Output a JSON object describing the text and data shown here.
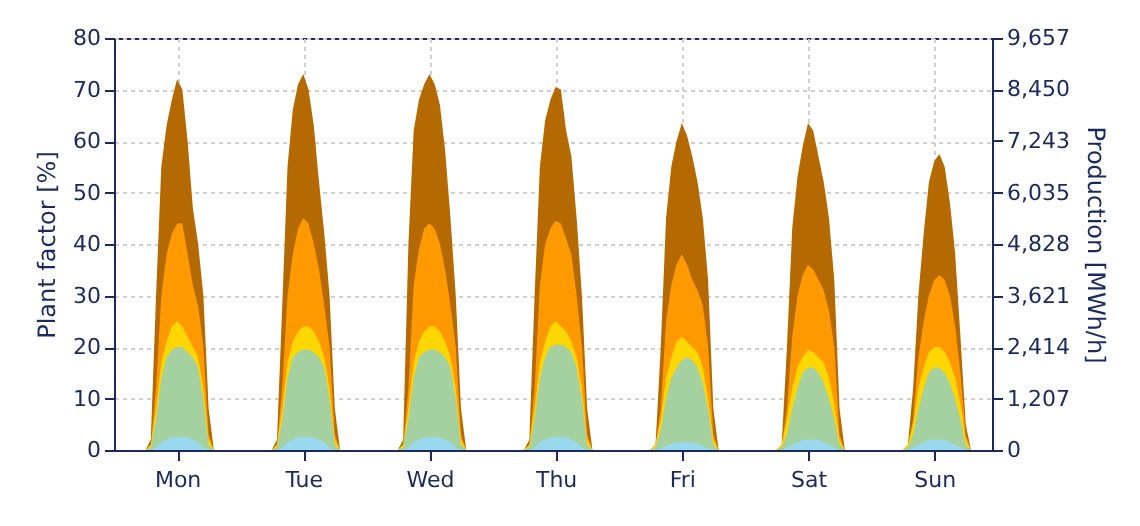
{
  "chart_data": {
    "type": "area",
    "ylabel": "Plant factor [%]",
    "y2label": "Production [MWh/h]",
    "grid": true,
    "categories": [
      null,
      null,
      null,
      null,
      null,
      null,
      null,
      null,
      null,
      null,
      null,
      null,
      "Mon",
      null,
      null,
      null,
      null,
      null,
      null,
      null,
      null,
      null,
      null,
      null,
      null,
      null,
      null,
      null,
      null,
      null,
      null,
      null,
      null,
      null,
      null,
      null,
      "Tue",
      null,
      null,
      null,
      null,
      null,
      null,
      null,
      null,
      null,
      null,
      null,
      null,
      null,
      null,
      null,
      null,
      null,
      null,
      null,
      null,
      null,
      null,
      null,
      "Wed",
      null,
      null,
      null,
      null,
      null,
      null,
      null,
      null,
      null,
      null,
      null,
      null,
      null,
      null,
      null,
      null,
      null,
      null,
      null,
      null,
      null,
      null,
      null,
      "Thu",
      null,
      null,
      null,
      null,
      null,
      null,
      null,
      null,
      null,
      null,
      null,
      null,
      null,
      null,
      null,
      null,
      null,
      null,
      null,
      null,
      null,
      null,
      null,
      "Fri",
      null,
      null,
      null,
      null,
      null,
      null,
      null,
      null,
      null,
      null,
      null,
      null,
      null,
      null,
      null,
      null,
      null,
      null,
      null,
      null,
      null,
      null,
      null,
      "Sat",
      null,
      null,
      null,
      null,
      null,
      null,
      null,
      null,
      null,
      null,
      null,
      null,
      null,
      null,
      null,
      null,
      null,
      null,
      null,
      null,
      null,
      null,
      null,
      "Sun",
      null,
      null,
      null,
      null,
      null,
      null,
      null,
      null,
      null,
      null,
      null
    ],
    "ylim": [
      0,
      80
    ],
    "yticks": [
      0,
      10,
      20,
      30,
      40,
      50,
      60,
      70,
      80
    ],
    "y2lim": [
      0,
      9657
    ],
    "y2ticks": [
      0,
      {
        "value": 1207,
        "label": "1,207"
      },
      {
        "value": 2414,
        "label": "2,414"
      },
      {
        "value": 3621,
        "label": "3,621"
      },
      {
        "value": 4828,
        "label": "4,828"
      },
      {
        "value": 6035,
        "label": "6,035"
      },
      {
        "value": 7243,
        "label": "7,243"
      },
      {
        "value": 8450,
        "label": "8,450"
      },
      {
        "value": 9657,
        "label": "9,657"
      }
    ],
    "series": [
      {
        "color": "#b46a00",
        "values": [
          0,
          0,
          0,
          0,
          0,
          0,
          0,
          2,
          30,
          55,
          63,
          68,
          72,
          70,
          60,
          47,
          40,
          30,
          8,
          0,
          0,
          0,
          0,
          0,
          0,
          0,
          0,
          0,
          0,
          0,
          0,
          2,
          28,
          55,
          66,
          71,
          73,
          70,
          63,
          52,
          42,
          30,
          8,
          0,
          0,
          0,
          0,
          0,
          0,
          0,
          0,
          0,
          0,
          0,
          0,
          2,
          40,
          62,
          68,
          71,
          73,
          71,
          67,
          58,
          45,
          30,
          8,
          0,
          0,
          0,
          0,
          0,
          0,
          0,
          0,
          0,
          0,
          0,
          0,
          2,
          30,
          55,
          64,
          68,
          70.5,
          70,
          62,
          57,
          45,
          30,
          8,
          0,
          0,
          0,
          0,
          0,
          0,
          0,
          0,
          0,
          0,
          0,
          0,
          1,
          20,
          45,
          55,
          60,
          63.5,
          61,
          57,
          52,
          45,
          33,
          8,
          0,
          0,
          0,
          0,
          0,
          0,
          0,
          0,
          0,
          0,
          0,
          0,
          1,
          20,
          43,
          53,
          59,
          63.5,
          62,
          57,
          52,
          45,
          33,
          8,
          0,
          0,
          0,
          0,
          0,
          0,
          0,
          0,
          0,
          0,
          0,
          0,
          1,
          12,
          30,
          42,
          52,
          56,
          57.5,
          55,
          48,
          38,
          22,
          5,
          0,
          0,
          0,
          0,
          0
        ]
      },
      {
        "color": "#ff9900",
        "values": [
          0,
          0,
          0,
          0,
          0,
          0,
          0,
          1,
          12,
          30,
          38,
          42,
          44,
          44,
          38,
          32,
          28,
          20,
          3,
          0,
          0,
          0,
          0,
          0,
          0,
          0,
          0,
          0,
          0,
          0,
          0,
          1,
          12,
          30,
          38,
          43,
          45,
          44,
          40,
          35,
          28,
          20,
          3,
          0,
          0,
          0,
          0,
          0,
          0,
          0,
          0,
          0,
          0,
          0,
          0,
          1,
          12,
          32,
          39,
          43,
          44,
          43,
          40,
          35,
          28,
          20,
          3,
          0,
          0,
          0,
          0,
          0,
          0,
          0,
          0,
          0,
          0,
          0,
          0,
          1,
          12,
          32,
          40,
          43,
          44.5,
          44,
          41,
          38,
          30,
          20,
          3,
          0,
          0,
          0,
          0,
          0,
          0,
          0,
          0,
          0,
          0,
          0,
          0,
          1,
          8,
          25,
          32,
          36,
          38,
          36,
          33,
          31,
          28,
          20,
          3,
          0,
          0,
          0,
          0,
          0,
          0,
          0,
          0,
          0,
          0,
          0,
          0,
          1,
          8,
          22,
          30,
          34,
          36,
          35,
          33,
          31,
          27,
          20,
          3,
          0,
          0,
          0,
          0,
          0,
          0,
          0,
          0,
          0,
          0,
          0,
          0,
          1,
          6,
          18,
          25,
          30,
          33,
          34,
          33,
          30,
          24,
          15,
          3,
          0,
          0,
          0,
          0,
          0
        ]
      },
      {
        "color": "#ffd700",
        "values": [
          0,
          0,
          0,
          0,
          0,
          0,
          0,
          1,
          8,
          17,
          21,
          24,
          25,
          24,
          22,
          20,
          18,
          12,
          2,
          0,
          0,
          0,
          0,
          0,
          0,
          0,
          0,
          0,
          0,
          0,
          0,
          1,
          8,
          17,
          21,
          23,
          24,
          24,
          23,
          21,
          18,
          12,
          2,
          0,
          0,
          0,
          0,
          0,
          0,
          0,
          0,
          0,
          0,
          0,
          0,
          1,
          8,
          17,
          21,
          23,
          24,
          24,
          23,
          21,
          18,
          12,
          2,
          0,
          0,
          0,
          0,
          0,
          0,
          0,
          0,
          0,
          0,
          0,
          0,
          1,
          8,
          17,
          21,
          24,
          25,
          24,
          23,
          21,
          18,
          12,
          2,
          0,
          0,
          0,
          0,
          0,
          0,
          0,
          0,
          0,
          0,
          0,
          0,
          1,
          6,
          14,
          18,
          21,
          22,
          21,
          20,
          19,
          16,
          10,
          2,
          0,
          0,
          0,
          0,
          0,
          0,
          0,
          0,
          0,
          0,
          0,
          0,
          1,
          6,
          12,
          16,
          18,
          19.5,
          19,
          18,
          17,
          14,
          9,
          2,
          0,
          0,
          0,
          0,
          0,
          0,
          0,
          0,
          0,
          0,
          0,
          0,
          1,
          5,
          12,
          16,
          19,
          20,
          20,
          19,
          17,
          14,
          9,
          2,
          0,
          0,
          0,
          0,
          0
        ]
      },
      {
        "color": "#a5d1a1",
        "values": [
          0,
          0,
          0,
          0,
          0,
          0,
          0,
          0.5,
          6,
          14,
          18,
          19.5,
          20,
          20,
          19,
          18,
          16,
          10,
          1,
          0,
          0,
          0,
          0,
          0,
          0,
          0,
          0,
          0,
          0,
          0,
          0,
          0.5,
          6,
          14,
          18,
          19,
          19.5,
          19.5,
          19,
          18,
          16,
          10,
          1,
          0,
          0,
          0,
          0,
          0,
          0,
          0,
          0,
          0,
          0,
          0,
          0,
          0.5,
          6,
          14,
          18,
          19,
          19.5,
          19.5,
          19,
          18,
          16,
          10,
          1,
          0,
          0,
          0,
          0,
          0,
          0,
          0,
          0,
          0,
          0,
          0,
          0,
          0.5,
          6,
          14,
          18,
          20,
          20.5,
          20.5,
          20,
          19,
          16,
          10,
          1,
          0,
          0,
          0,
          0,
          0,
          0,
          0,
          0,
          0,
          0,
          0,
          0,
          0.5,
          4,
          10,
          14,
          16,
          17.5,
          18,
          17.5,
          16,
          13,
          8,
          1,
          0,
          0,
          0,
          0,
          0,
          0,
          0,
          0,
          0,
          0,
          0,
          0,
          0.5,
          3,
          8,
          12,
          15,
          16,
          16,
          15,
          13,
          10,
          6,
          1,
          0,
          0,
          0,
          0,
          0,
          0,
          0,
          0,
          0,
          0,
          0,
          0,
          0.5,
          3,
          8,
          12,
          15,
          16,
          16,
          15,
          13,
          10,
          6,
          1,
          0,
          0,
          0,
          0,
          0
        ]
      },
      {
        "color": "#9ad8ee",
        "values": [
          0,
          0,
          0,
          0,
          0,
          0,
          0,
          0,
          0.5,
          1.5,
          2,
          2.5,
          2.5,
          2.5,
          2.5,
          2,
          1.5,
          0.5,
          0,
          0,
          0,
          0,
          0,
          0,
          0,
          0,
          0,
          0,
          0,
          0,
          0,
          0,
          0.5,
          1.5,
          2,
          2.5,
          2.5,
          2.5,
          2.5,
          2,
          1.5,
          0.5,
          0,
          0,
          0,
          0,
          0,
          0,
          0,
          0,
          0,
          0,
          0,
          0,
          0,
          0,
          0.5,
          1.5,
          2,
          2.5,
          2.5,
          2.5,
          2.5,
          2,
          1.5,
          0.5,
          0,
          0,
          0,
          0,
          0,
          0,
          0,
          0,
          0,
          0,
          0,
          0,
          0,
          0,
          0.5,
          1.5,
          2,
          2.5,
          2.5,
          2.5,
          2.5,
          2,
          1.5,
          0.5,
          0,
          0,
          0,
          0,
          0,
          0,
          0,
          0,
          0,
          0,
          0,
          0,
          0,
          0,
          0.3,
          0.8,
          1.2,
          1.5,
          1.5,
          1.5,
          1.5,
          1.2,
          0.8,
          0.3,
          0,
          0,
          0,
          0,
          0,
          0,
          0,
          0,
          0,
          0,
          0,
          0,
          0,
          0,
          0.5,
          1,
          1.5,
          2,
          2,
          2,
          2,
          1.5,
          1,
          0.5,
          0,
          0,
          0,
          0,
          0,
          0,
          0,
          0,
          0,
          0,
          0,
          0,
          0,
          0,
          0.5,
          1,
          1.5,
          2,
          2,
          2,
          2,
          1.5,
          1,
          0.5,
          0,
          0,
          0,
          0,
          0,
          0
        ]
      }
    ]
  }
}
